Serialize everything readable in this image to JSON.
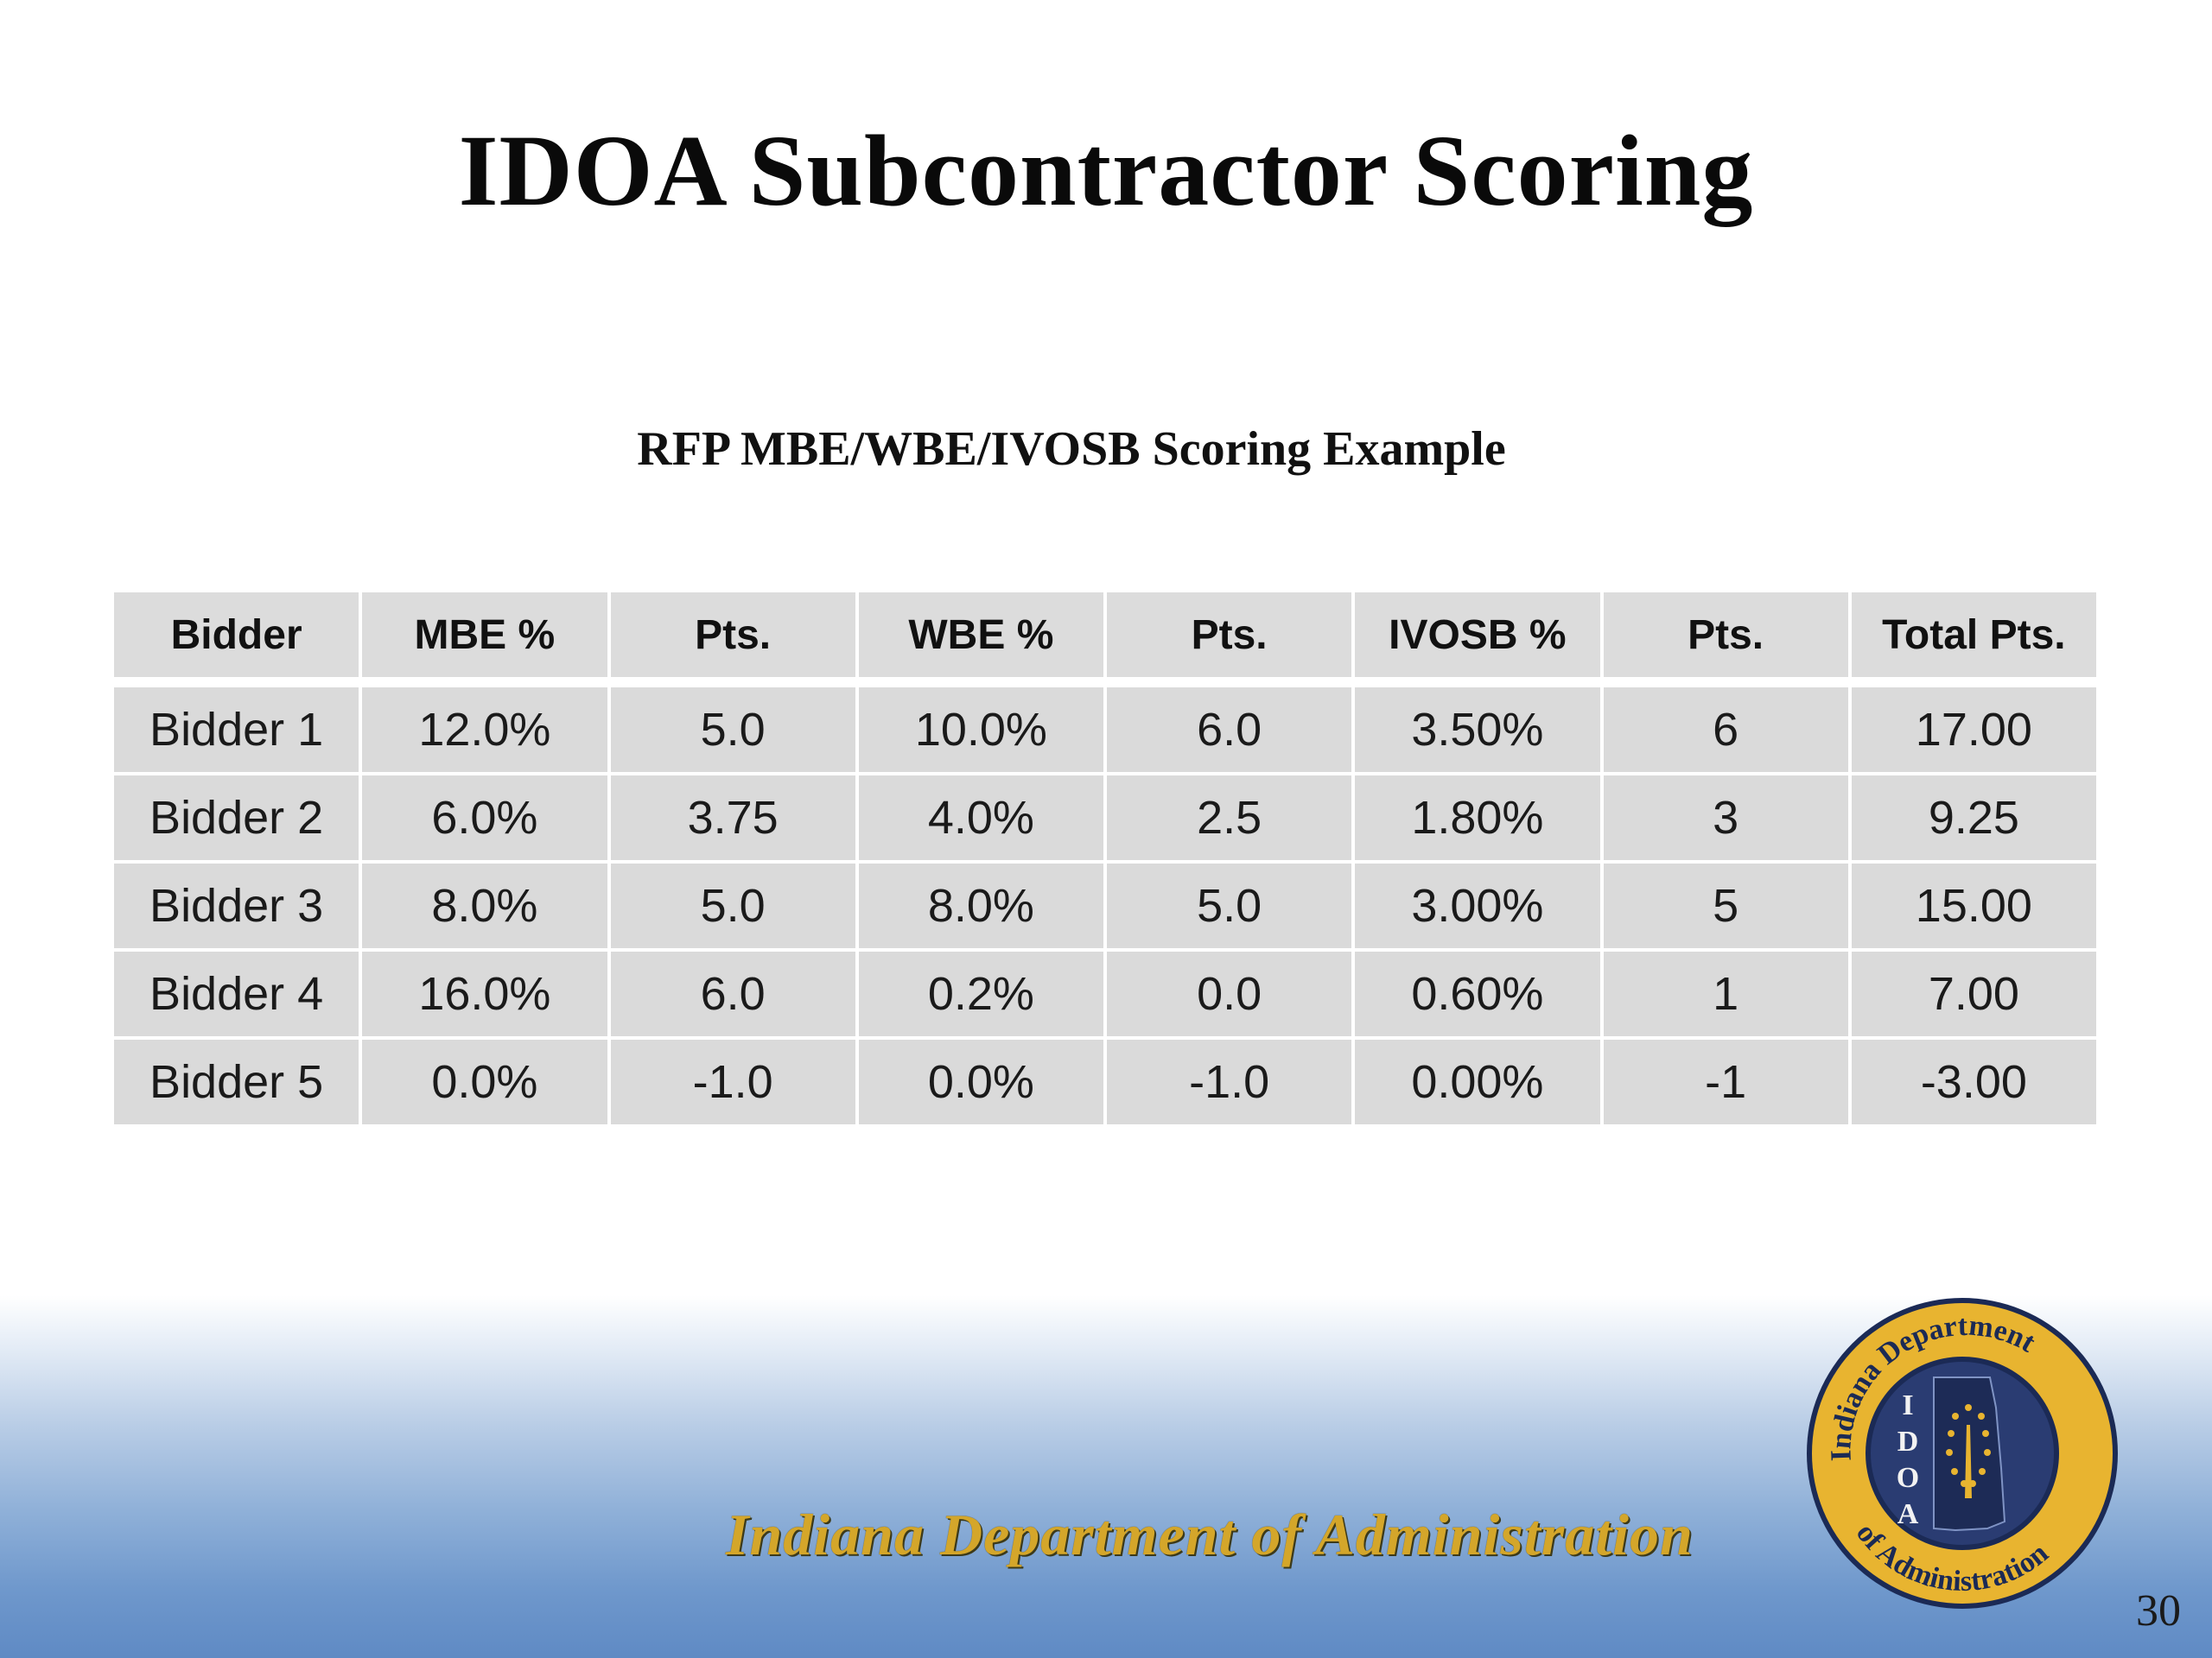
{
  "title": "IDOA Subcontractor Scoring",
  "subtitle": "RFP MBE/WBE/IVOSB Scoring Example",
  "table": {
    "headers": [
      "Bidder",
      "MBE %",
      "Pts.",
      "WBE %",
      "Pts.",
      "IVOSB %",
      "Pts.",
      "Total Pts."
    ],
    "rows": [
      [
        "Bidder 1",
        "12.0%",
        "5.0",
        "10.0%",
        "6.0",
        "3.50%",
        "6",
        "17.00"
      ],
      [
        "Bidder 2",
        "6.0%",
        "3.75",
        "4.0%",
        "2.5",
        "1.80%",
        "3",
        "9.25"
      ],
      [
        "Bidder 3",
        "8.0%",
        "5.0",
        "8.0%",
        "5.0",
        "3.00%",
        "5",
        "15.00"
      ],
      [
        "Bidder 4",
        "16.0%",
        "6.0",
        "0.2%",
        "0.0",
        "0.60%",
        "1",
        "7.00"
      ],
      [
        "Bidder 5",
        "0.0%",
        "-1.0",
        "0.0%",
        "-1.0",
        "0.00%",
        "-1",
        "-3.00"
      ]
    ]
  },
  "footer": {
    "organization": "Indiana Department of Administration",
    "page_number": "30"
  },
  "seal": {
    "top_text": "Indiana Department",
    "bottom_text": "of Administration",
    "letters": [
      "I",
      "D",
      "O",
      "A"
    ]
  },
  "colors": {
    "cell_fill": "#dadada",
    "footer_gold": "#d4a62a",
    "seal_ring": "#e8b430",
    "seal_center": "#1f2f5e",
    "background_bottom": "#5f8ac4"
  }
}
